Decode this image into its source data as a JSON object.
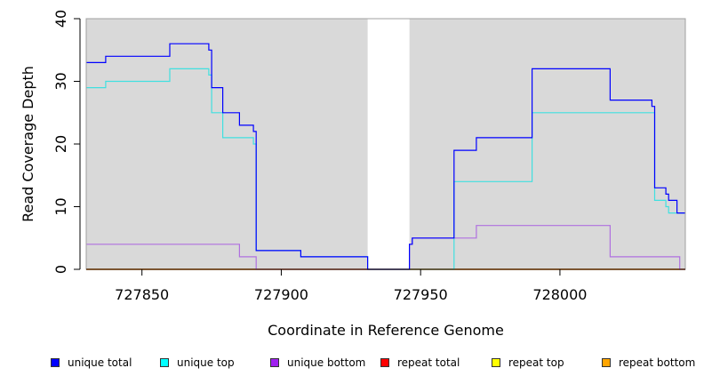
{
  "chart_data": {
    "type": "line",
    "xlabel": "Coordinate in Reference Genome",
    "ylabel": "Read Coverage Depth",
    "xlim": [
      727830,
      728045
    ],
    "ylim": [
      0,
      40
    ],
    "x_ticks": [
      727850,
      727900,
      727950,
      728000
    ],
    "y_ticks": [
      0,
      10,
      20,
      30,
      40
    ],
    "background_color": "#d9d9d9",
    "gap_region": [
      727931,
      727946
    ],
    "legend_position": "bottom",
    "series": [
      {
        "name": "unique total",
        "color": "#0000ff",
        "swatch_color": "#0000ff",
        "points": [
          [
            727830,
            33
          ],
          [
            727837,
            33
          ],
          [
            727837,
            34
          ],
          [
            727860,
            34
          ],
          [
            727860,
            36
          ],
          [
            727874,
            36
          ],
          [
            727874,
            35
          ],
          [
            727875,
            35
          ],
          [
            727875,
            29
          ],
          [
            727879,
            29
          ],
          [
            727879,
            25
          ],
          [
            727885,
            25
          ],
          [
            727885,
            23
          ],
          [
            727890,
            23
          ],
          [
            727890,
            22
          ],
          [
            727891,
            22
          ],
          [
            727891,
            3
          ],
          [
            727907,
            3
          ],
          [
            727907,
            2
          ],
          [
            727931,
            2
          ],
          [
            727931,
            0
          ],
          [
            727946,
            0
          ],
          [
            727946,
            4
          ],
          [
            727947,
            4
          ],
          [
            727947,
            5
          ],
          [
            727962,
            5
          ],
          [
            727962,
            19
          ],
          [
            727970,
            19
          ],
          [
            727970,
            21
          ],
          [
            727990,
            21
          ],
          [
            727990,
            32
          ],
          [
            728018,
            32
          ],
          [
            728018,
            27
          ],
          [
            728033,
            27
          ],
          [
            728033,
            26
          ],
          [
            728034,
            26
          ],
          [
            728034,
            13
          ],
          [
            728038,
            13
          ],
          [
            728038,
            12
          ],
          [
            728039,
            12
          ],
          [
            728039,
            11
          ],
          [
            728042,
            11
          ],
          [
            728042,
            9
          ],
          [
            728045,
            9
          ]
        ]
      },
      {
        "name": "unique top",
        "color": "#40e0e0",
        "swatch_color": "#00ffff",
        "points": [
          [
            727830,
            29
          ],
          [
            727837,
            29
          ],
          [
            727837,
            30
          ],
          [
            727860,
            30
          ],
          [
            727860,
            32
          ],
          [
            727874,
            32
          ],
          [
            727874,
            31
          ],
          [
            727875,
            31
          ],
          [
            727875,
            25
          ],
          [
            727879,
            25
          ],
          [
            727879,
            21
          ],
          [
            727890,
            21
          ],
          [
            727890,
            20
          ],
          [
            727891,
            20
          ],
          [
            727891,
            3
          ],
          [
            727907,
            3
          ],
          [
            727907,
            2
          ],
          [
            727931,
            2
          ],
          [
            727931,
            0
          ],
          [
            727962,
            0
          ],
          [
            727962,
            14
          ],
          [
            727990,
            14
          ],
          [
            727990,
            25
          ],
          [
            728034,
            25
          ],
          [
            728034,
            11
          ],
          [
            728038,
            11
          ],
          [
            728038,
            10
          ],
          [
            728039,
            10
          ],
          [
            728039,
            9
          ],
          [
            728042,
            9
          ],
          [
            728042,
            9
          ],
          [
            728045,
            9
          ]
        ]
      },
      {
        "name": "unique bottom",
        "color": "#b070e0",
        "swatch_color": "#a020f0",
        "points": [
          [
            727830,
            4
          ],
          [
            727885,
            4
          ],
          [
            727885,
            2
          ],
          [
            727891,
            2
          ],
          [
            727891,
            0
          ],
          [
            727946,
            0
          ],
          [
            727946,
            4
          ],
          [
            727947,
            4
          ],
          [
            727947,
            5
          ],
          [
            727962,
            5
          ],
          [
            727970,
            5
          ],
          [
            727970,
            7
          ],
          [
            728018,
            7
          ],
          [
            728018,
            2
          ],
          [
            728043,
            2
          ],
          [
            728043,
            0
          ],
          [
            728045,
            0
          ]
        ]
      },
      {
        "name": "repeat total",
        "color": "#ff0000",
        "swatch_color": "#ff0000",
        "points": [
          [
            727830,
            0
          ],
          [
            728045,
            0
          ]
        ]
      },
      {
        "name": "repeat top",
        "color": "#ffff00",
        "swatch_color": "#ffff00",
        "points": [
          [
            727830,
            0
          ],
          [
            728045,
            0
          ]
        ]
      },
      {
        "name": "repeat bottom",
        "color": "#ffa500",
        "swatch_color": "#ffa500",
        "points": [
          [
            727830,
            0
          ],
          [
            728045,
            0
          ]
        ]
      }
    ]
  }
}
